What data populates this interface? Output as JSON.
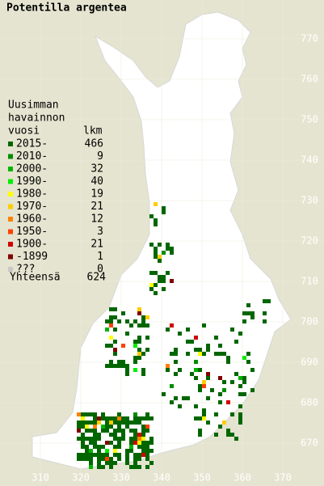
{
  "title": "Potentilla argentea",
  "legend": {
    "heading": [
      "Uusimman",
      "havainnon",
      "vuosi"
    ],
    "count_heading": "lkm",
    "rows": [
      {
        "label": "2015-",
        "count": 466,
        "color": "#006600"
      },
      {
        "label": "2010-",
        "count": 9,
        "color": "#008c00"
      },
      {
        "label": "2000-",
        "count": 32,
        "color": "#00b400"
      },
      {
        "label": "1990-",
        "count": 40,
        "color": "#00ee00"
      },
      {
        "label": "1980-",
        "count": 19,
        "color": "#ffff00"
      },
      {
        "label": "1970-",
        "count": 21,
        "color": "#ffcc00"
      },
      {
        "label": "1960-",
        "count": 12,
        "color": "#ff8000"
      },
      {
        "label": "1950-",
        "count": 3,
        "color": "#ff4000"
      },
      {
        "label": "1900-",
        "count": 21,
        "color": "#d00000"
      },
      {
        "label": "-1899",
        "count": 1,
        "color": "#800000"
      },
      {
        "label": "???",
        "count": 0,
        "color": "#c8c8c8"
      }
    ],
    "total": {
      "label": "Yhteensä",
      "count": 624
    }
  },
  "x_labels": [
    310,
    320,
    330,
    340,
    350,
    360,
    370
  ],
  "y_labels": [
    670,
    680,
    690,
    700,
    710,
    720,
    730,
    740,
    750,
    760,
    770
  ]
}
